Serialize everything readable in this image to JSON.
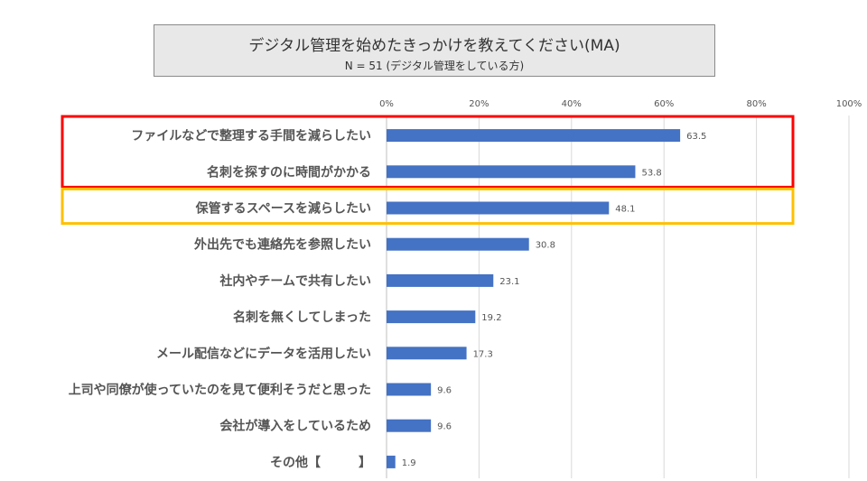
{
  "chart_data": {
    "type": "bar",
    "orientation": "horizontal",
    "title": "デジタル管理を始めたきっかけを教えてください(MA)",
    "subtitle": "N = 51 (デジタル管理をしている方)",
    "categories": [
      "ファイルなどで整理する手間を減らしたい",
      "名刺を探すのに時間がかかる",
      "保管するスペースを減らしたい",
      "外出先でも連絡先を参照したい",
      "社内やチームで共有したい",
      "名刺を無くしてしまった",
      "メール配信などにデータを活用したい",
      "上司や同僚が使っていたのを見て便利そうだと思った",
      "会社が導入をしているため",
      "その他【　　　】"
    ],
    "values": [
      63.5,
      53.8,
      48.1,
      30.8,
      23.1,
      19.2,
      17.3,
      9.6,
      9.6,
      1.9
    ],
    "data_labels": [
      "63.5",
      "53.8",
      "48.1",
      "30.8",
      "23.1",
      "19.2",
      "17.3",
      "9.6",
      "9.6",
      "1.9"
    ],
    "xlim": [
      0,
      100
    ],
    "xticks": [
      "0%",
      "20%",
      "40%",
      "60%",
      "80%",
      "100%"
    ],
    "grid": true,
    "bar_color": "#4472c4",
    "highlights": [
      {
        "name": "red-highlight",
        "color": "#ff0000",
        "categories": [
          0,
          1
        ]
      },
      {
        "name": "yellow-highlight",
        "color": "#ffc000",
        "categories": [
          2
        ]
      }
    ]
  }
}
